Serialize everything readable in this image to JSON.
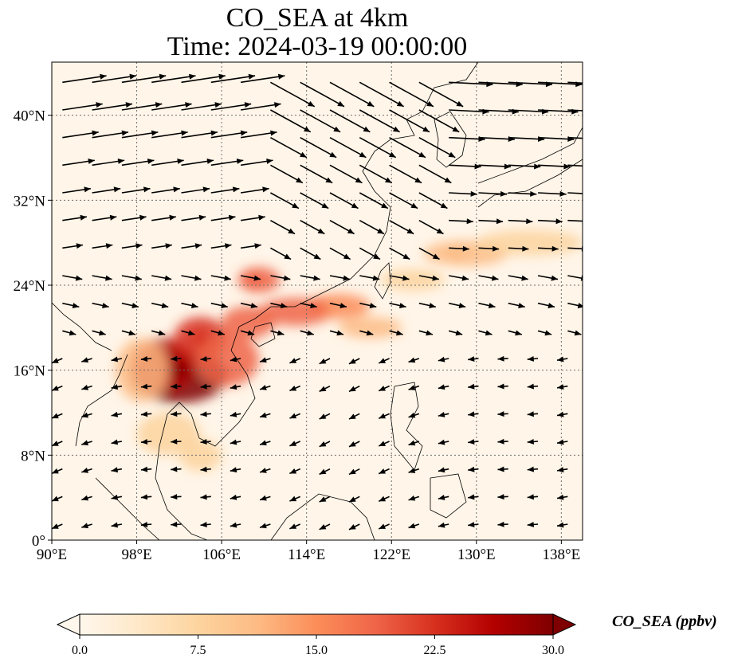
{
  "title": {
    "line1": "CO_SEA at 4km",
    "line2": "Time: 2024-03-19 00:00:00"
  },
  "map": {
    "lon_range": [
      90,
      140
    ],
    "lat_range": [
      0,
      45
    ],
    "lon_ticks": [
      {
        "value": 90,
        "label": "90°E"
      },
      {
        "value": 98,
        "label": "98°E"
      },
      {
        "value": 106,
        "label": "106°E"
      },
      {
        "value": 114,
        "label": "114°E"
      },
      {
        "value": 122,
        "label": "122°E"
      },
      {
        "value": 130,
        "label": "130°E"
      },
      {
        "value": 138,
        "label": "138°E"
      }
    ],
    "lat_ticks": [
      {
        "value": 0,
        "label": "0°"
      },
      {
        "value": 8,
        "label": "8°N"
      },
      {
        "value": 16,
        "label": "16°N"
      },
      {
        "value": 24,
        "label": "24°N"
      },
      {
        "value": 32,
        "label": "32°N"
      },
      {
        "value": 40,
        "label": "40°N"
      }
    ],
    "gridlines": true
  },
  "colorbar": {
    "label": "CO_SEA (ppbv)",
    "min": 0.0,
    "max": 30.0,
    "ticks": [
      "0.0",
      "7.5",
      "15.0",
      "22.5",
      "30.0"
    ],
    "colormap": "OrRd",
    "stops": [
      "#fff7ec",
      "#fee8c8",
      "#fdd49e",
      "#fdbb84",
      "#fc8d59",
      "#ef6548",
      "#d7301f",
      "#b30000",
      "#7f0000"
    ]
  },
  "plumes": [
    {
      "name": "mainland-southeast-asia",
      "lon": 102,
      "lat": 16,
      "value": 30
    },
    {
      "name": "northern-laos",
      "lon": 104,
      "lat": 19,
      "value": 24
    },
    {
      "name": "guangxi-plume",
      "lon": 109,
      "lat": 24.5,
      "value": 20
    },
    {
      "name": "south-china-coast",
      "lon": 115,
      "lat": 22,
      "value": 18
    },
    {
      "name": "east-china-sea-band",
      "lon": 128,
      "lat": 27,
      "value": 10
    }
  ]
}
